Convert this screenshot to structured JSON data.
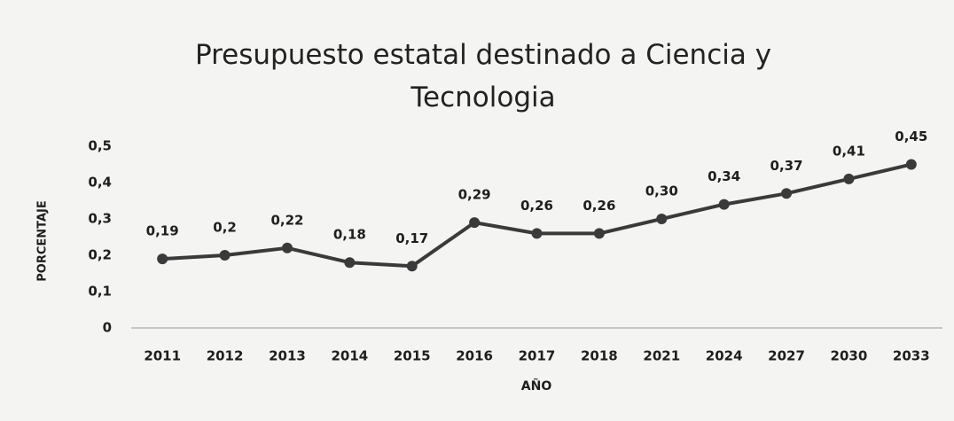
{
  "chart_data": {
    "type": "line",
    "title": "Presupuesto estatal destinado a Ciencia y Tecnologia",
    "x_label": "AÑO",
    "y_label": "PORCENTAJE",
    "categories": [
      "2011",
      "2012",
      "2013",
      "2014",
      "2015",
      "2016",
      "2017",
      "2018",
      "2021",
      "2024",
      "2027",
      "2030",
      "2033"
    ],
    "values": [
      0.19,
      0.2,
      0.22,
      0.18,
      0.17,
      0.29,
      0.26,
      0.26,
      0.3,
      0.34,
      0.37,
      0.41,
      0.45
    ],
    "value_labels": [
      "0,19",
      "0,2",
      "0,22",
      "0,18",
      "0,17",
      "0,29",
      "0,26",
      "0,26",
      "0,30",
      "0,34",
      "0,37",
      "0,41",
      "0,45"
    ],
    "color": "#3a3a3a",
    "ylim": [
      0,
      0.5
    ],
    "yticks": [
      0,
      {
        "value": 0.1,
        "label": "0,1"
      },
      {
        "value": 0.2,
        "label": "0,2"
      },
      {
        "value": 0.3,
        "label": "0,3"
      },
      {
        "value": 0.4,
        "label": "0,4"
      },
      {
        "value": 0.5,
        "label": "0,5"
      }
    ],
    "grid": false
  }
}
